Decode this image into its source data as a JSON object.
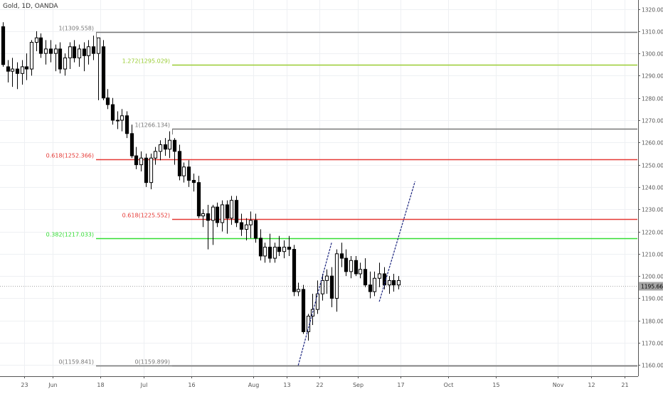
{
  "symbol_title": "Gold, 1D, OANDA",
  "chart_data": {
    "type": "candlestick",
    "title": "Gold, 1D, OANDA",
    "ylim": [
      1155,
      1324
    ],
    "y_ticks": [
      1160,
      1170,
      1180,
      1190,
      1200,
      1210,
      1220,
      1230,
      1240,
      1250,
      1260,
      1270,
      1280,
      1290,
      1300,
      1310,
      1320
    ],
    "y_tick_labels": [
      "1160.000",
      "1170.000",
      "1180.000",
      "1190.000",
      "1200.000",
      "1210.000",
      "1220.000",
      "1230.000",
      "1240.000",
      "1250.000",
      "1260.000",
      "1270.000",
      "1280.000",
      "1290.000",
      "1300.000",
      "1310.000",
      "1320.000"
    ],
    "x_ticks": [
      {
        "label": "23",
        "bar": 5
      },
      {
        "label": "Jun",
        "bar": 11
      },
      {
        "label": "18",
        "bar": 21
      },
      {
        "label": "Jul",
        "bar": 30
      },
      {
        "label": "16",
        "bar": 40
      },
      {
        "label": "Aug",
        "bar": 53
      },
      {
        "label": "13",
        "bar": 60
      },
      {
        "label": "22",
        "bar": 67
      },
      {
        "label": "Sep",
        "bar": 75
      },
      {
        "label": "17",
        "bar": 84
      },
      {
        "label": "Oct",
        "bar": 94
      },
      {
        "label": "15",
        "bar": 104
      },
      {
        "label": "Nov",
        "bar": 117
      },
      {
        "label": "12",
        "bar": 124
      },
      {
        "label": "21",
        "bar": 131
      }
    ],
    "current_price": {
      "label": "1195.662",
      "value": 1195.662
    },
    "candles": [
      [
        1312,
        1314,
        1294,
        1295
      ],
      [
        1294,
        1297,
        1287,
        1292
      ],
      [
        1292,
        1298,
        1285,
        1293
      ],
      [
        1293,
        1296,
        1284,
        1291
      ],
      [
        1291,
        1297,
        1286,
        1294
      ],
      [
        1294,
        1300,
        1288,
        1293
      ],
      [
        1293,
        1306,
        1290,
        1305
      ],
      [
        1305,
        1310,
        1301,
        1307
      ],
      [
        1307,
        1309,
        1298,
        1300
      ],
      [
        1300,
        1306,
        1295,
        1302
      ],
      [
        1302,
        1306,
        1296,
        1300
      ],
      [
        1300,
        1304,
        1292,
        1302
      ],
      [
        1302,
        1305,
        1291,
        1293
      ],
      [
        1293,
        1300,
        1290,
        1298
      ],
      [
        1298,
        1305,
        1293,
        1303
      ],
      [
        1303,
        1306,
        1296,
        1298
      ],
      [
        1298,
        1304,
        1294,
        1302
      ],
      [
        1302,
        1305,
        1292,
        1299
      ],
      [
        1299,
        1306,
        1295,
        1303
      ],
      [
        1303,
        1308,
        1297,
        1300
      ],
      [
        1300,
        1307,
        1279,
        1307
      ],
      [
        1303,
        1306,
        1279,
        1280
      ],
      [
        1280,
        1284,
        1275,
        1277
      ],
      [
        1277,
        1280,
        1268,
        1270
      ],
      [
        1270,
        1274,
        1266,
        1270
      ],
      [
        1270,
        1275,
        1265,
        1272
      ],
      [
        1272,
        1274,
        1262,
        1264
      ],
      [
        1264,
        1268,
        1253,
        1254
      ],
      [
        1254,
        1258,
        1248,
        1250
      ],
      [
        1250,
        1256,
        1247,
        1253
      ],
      [
        1253,
        1255,
        1240,
        1242
      ],
      [
        1242,
        1255,
        1239,
        1253
      ],
      [
        1253,
        1258,
        1250,
        1256
      ],
      [
        1256,
        1261,
        1252,
        1259
      ],
      [
        1259,
        1262,
        1254,
        1257
      ],
      [
        1257,
        1265,
        1253,
        1261
      ],
      [
        1261,
        1262,
        1250,
        1256
      ],
      [
        1256,
        1259,
        1243,
        1245
      ],
      [
        1245,
        1251,
        1242,
        1249
      ],
      [
        1249,
        1252,
        1240,
        1243
      ],
      [
        1243,
        1246,
        1238,
        1242
      ],
      [
        1242,
        1245,
        1226,
        1227
      ],
      [
        1227,
        1230,
        1222,
        1228
      ],
      [
        1228,
        1232,
        1212,
        1225
      ],
      [
        1225,
        1232,
        1214,
        1231
      ],
      [
        1231,
        1233,
        1222,
        1224
      ],
      [
        1224,
        1234,
        1220,
        1232
      ],
      [
        1232,
        1234,
        1219,
        1226
      ],
      [
        1226,
        1236,
        1223,
        1234
      ],
      [
        1234,
        1236,
        1222,
        1224
      ],
      [
        1224,
        1228,
        1218,
        1221
      ],
      [
        1221,
        1226,
        1216,
        1223
      ],
      [
        1223,
        1229,
        1217,
        1225
      ],
      [
        1225,
        1228,
        1215,
        1217
      ],
      [
        1217,
        1221,
        1207,
        1209
      ],
      [
        1209,
        1215,
        1206,
        1213
      ],
      [
        1213,
        1219,
        1206,
        1208
      ],
      [
        1208,
        1215,
        1206,
        1213
      ],
      [
        1213,
        1218,
        1209,
        1211
      ],
      [
        1211,
        1216,
        1208,
        1213
      ],
      [
        1213,
        1218,
        1209,
        1212
      ],
      [
        1212,
        1214,
        1191,
        1193
      ],
      [
        1193,
        1197,
        1191,
        1194
      ],
      [
        1194,
        1196,
        1174,
        1175
      ],
      [
        1175,
        1183,
        1171,
        1182
      ],
      [
        1182,
        1192,
        1178,
        1185
      ],
      [
        1185,
        1198,
        1183,
        1192
      ],
      [
        1192,
        1201,
        1189,
        1198
      ],
      [
        1198,
        1203,
        1192,
        1200
      ],
      [
        1200,
        1204,
        1186,
        1190
      ],
      [
        1190,
        1212,
        1184,
        1210
      ],
      [
        1210,
        1215,
        1204,
        1208
      ],
      [
        1208,
        1212,
        1200,
        1202
      ],
      [
        1202,
        1209,
        1199,
        1207
      ],
      [
        1207,
        1209,
        1200,
        1201
      ],
      [
        1201,
        1206,
        1199,
        1203
      ],
      [
        1203,
        1208,
        1195,
        1196
      ],
      [
        1196,
        1202,
        1190,
        1193
      ],
      [
        1193,
        1202,
        1191,
        1199
      ],
      [
        1199,
        1206,
        1195,
        1201
      ],
      [
        1201,
        1204,
        1194,
        1196
      ],
      [
        1196,
        1200,
        1192,
        1198
      ],
      [
        1198,
        1201,
        1193,
        1196
      ],
      [
        1196,
        1200,
        1194,
        1198
      ]
    ],
    "horizontal_levels": [
      {
        "label": "1(1309.558)",
        "value": 1309.558,
        "start_bar": 20,
        "color": "#787878"
      },
      {
        "label": "1.272(1295.029)",
        "value": 1295.029,
        "start_bar": 36,
        "color": "#99cc33"
      },
      {
        "label": "1(1266.134)",
        "value": 1266.134,
        "start_bar": 36,
        "color": "#787878"
      },
      {
        "label": "0.618(1252.366)",
        "value": 1252.366,
        "start_bar": 20,
        "color": "#e53935"
      },
      {
        "label": "0.618(1225.552)",
        "value": 1225.552,
        "start_bar": 36,
        "color": "#e53935"
      },
      {
        "label": "0.382(1217.033)",
        "value": 1217.033,
        "start_bar": 20,
        "color": "#33dd33"
      },
      {
        "label": "0(1159.841)",
        "value": 1159.841,
        "start_bar": 20,
        "color": "#787878"
      },
      {
        "label": "0(1159.899)",
        "value": 1159.899,
        "start_bar": 36,
        "color": "#787878"
      }
    ],
    "trend_lines": [
      {
        "from": [
          62.5,
          1159.9
        ],
        "to": [
          69.5,
          1215.0
        ],
        "color": "#1a237e"
      },
      {
        "from": [
          79.5,
          1188.5
        ],
        "to": [
          87,
          1242.5
        ],
        "color": "#1a237e"
      }
    ],
    "current_price_color": "#a6a6a6"
  }
}
